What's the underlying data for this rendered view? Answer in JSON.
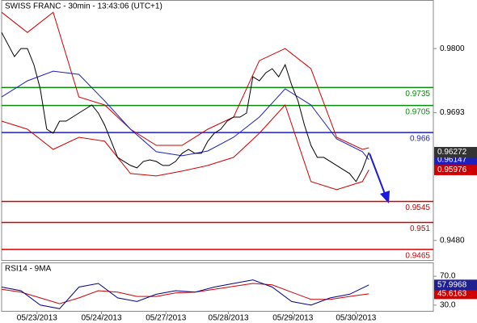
{
  "chart_data": [
    {
      "type": "line",
      "title": "SWISS FRANC - 30min - 13:43:06 (UTC+1)",
      "xlim": [
        0,
        67
      ],
      "x": [
        0,
        1,
        2,
        3,
        4,
        5,
        6,
        7,
        8,
        9,
        10,
        11,
        12,
        13,
        14,
        15,
        16,
        17,
        18,
        19,
        20,
        21,
        22,
        23,
        24,
        25,
        26,
        27,
        28,
        29,
        30,
        31,
        32,
        33,
        34,
        35,
        36,
        37,
        38,
        39,
        40,
        41,
        42,
        43,
        44,
        45,
        46,
        47,
        48,
        49,
        50,
        51,
        52,
        53,
        54,
        55,
        56,
        57
      ],
      "xticks": [
        {
          "value": 5.5,
          "label": "05/23/2013"
        },
        {
          "value": 15.5,
          "label": "05/24/2013"
        },
        {
          "value": 25.5,
          "label": "05/27/2013"
        },
        {
          "value": 35.2,
          "label": "05/28/2013"
        },
        {
          "value": 45.2,
          "label": "05/29/2013"
        },
        {
          "value": 55,
          "label": "05/30/2013"
        }
      ],
      "ylim": [
        0.9446,
        0.9881
      ],
      "yticks": [
        {
          "value": 0.98,
          "label": "0.9800"
        },
        0.9693,
        {
          "value": 0.948,
          "label": "0.9480"
        }
      ],
      "levels": [
        {
          "value": 0.9735,
          "color": "#0a8a0a"
        },
        {
          "value": 0.9705,
          "color": "#0a8a0a"
        },
        {
          "value": 0.966,
          "color": "#1a1adf"
        },
        {
          "value": 0.9545,
          "color": "#d00000"
        },
        {
          "value": 0.951,
          "color": "#d00000"
        },
        {
          "value": 0.9465,
          "color": "#d00000"
        }
      ],
      "series": [
        {
          "color": "#d00000",
          "x": [
            0,
            4,
            8,
            12,
            16,
            20,
            24,
            28,
            32,
            36,
            40,
            44,
            48,
            52,
            56,
            57
          ],
          "values": [
            0.98605,
            0.98269,
            0.98605,
            0.97193,
            0.97059,
            0.96655,
            0.96386,
            0.96386,
            0.96655,
            0.96857,
            0.97798,
            0.98,
            0.97664,
            0.96521,
            0.96319,
            0.96346
          ]
        },
        {
          "color": "#d00000",
          "tag_color": "#d00000",
          "x": [
            0,
            4,
            8,
            12,
            16,
            20,
            24,
            28,
            32,
            36,
            40,
            44,
            48,
            52,
            56,
            57
          ],
          "values": [
            0.9679,
            0.96655,
            0.96319,
            0.96521,
            0.96454,
            0.95916,
            0.95876,
            0.95956,
            0.9605,
            0.96185,
            0.96588,
            0.97059,
            0.95781,
            0.95647,
            0.95781,
            0.95976
          ]
        },
        {
          "color": "#1f1fbf",
          "tag_color": "#1f1fbf",
          "x": [
            0,
            4,
            8,
            12,
            16,
            20,
            24,
            28,
            32,
            36,
            40,
            44,
            48,
            52,
            56,
            57
          ],
          "values": [
            0.97193,
            0.97462,
            0.97623,
            0.9757,
            0.97126,
            0.96655,
            0.96279,
            0.96212,
            0.96292,
            0.96521,
            0.96857,
            0.97328,
            0.97059,
            0.96494,
            0.96279,
            0.96147
          ]
        },
        {
          "color": "#000000",
          "tag_color": "#333333",
          "values": [
            0.98269,
            0.98067,
            0.97866,
            0.98,
            0.98,
            0.97731,
            0.97328,
            0.96655,
            0.96588,
            0.9679,
            0.9679,
            0.96857,
            0.96924,
            0.96992,
            0.97059,
            0.96924,
            0.96723,
            0.96454,
            0.96185,
            0.96118,
            0.9605,
            0.9601,
            0.96118,
            0.96144,
            0.96118,
            0.9605,
            0.9605,
            0.96118,
            0.96252,
            0.96319,
            0.96252,
            0.96252,
            0.96454,
            0.96588,
            0.96655,
            0.9679,
            0.96857,
            0.96857,
            0.96924,
            0.97529,
            0.97462,
            0.97597,
            0.97664,
            0.97529,
            0.97731,
            0.97395,
            0.97126,
            0.96723,
            0.96386,
            0.96185,
            0.96185,
            0.96118,
            0.9605,
            0.95983,
            0.95916,
            0.95781,
            0.95983,
            0.96272
          ]
        }
      ]
    },
    {
      "type": "line",
      "title": "RSI14 - 9MA",
      "xlim": [
        0,
        67
      ],
      "x": [
        0,
        3,
        6,
        9,
        12,
        15,
        18,
        21,
        24,
        27,
        30,
        33,
        36,
        39,
        42,
        45,
        48,
        51,
        54,
        57
      ],
      "ylim": [
        22,
        88
      ],
      "yticks": [
        {
          "value": 70,
          "label": "70.0"
        },
        {
          "value": 30,
          "label": "30.0"
        }
      ],
      "series": [
        {
          "color": "#d00000",
          "tag_color": "#d00000",
          "values": [
            52,
            48,
            40,
            32,
            40,
            50,
            48,
            42,
            42,
            47,
            48,
            52,
            56,
            60,
            58,
            48,
            38,
            38,
            42,
            45.6163
          ]
        },
        {
          "color": "#00008b",
          "tag_color": "#1f1f8f",
          "values": [
            55,
            50,
            30,
            25,
            55,
            60,
            40,
            35,
            45,
            50,
            48,
            55,
            60,
            65,
            55,
            35,
            30,
            40,
            45,
            57.9968
          ]
        }
      ]
    }
  ]
}
